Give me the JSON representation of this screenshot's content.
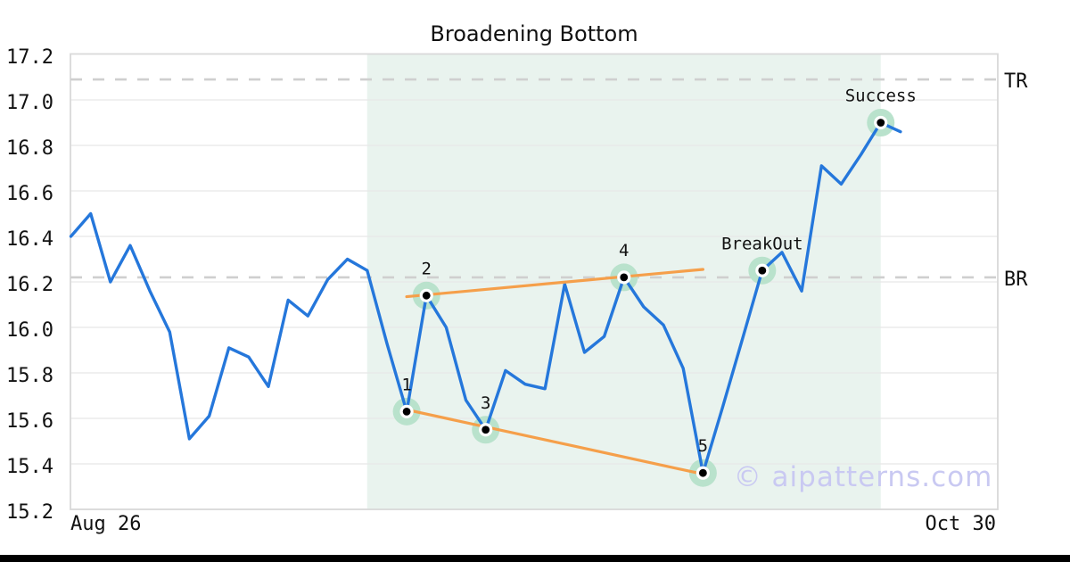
{
  "title": "Broadening Bottom",
  "watermark": "© aipatterns.com",
  "x_axis": {
    "left_label": "Aug 26",
    "right_label": "Oct 30"
  },
  "colors": {
    "price_line": "#2577db",
    "trendline": "#f59f4a",
    "marker_halo": "#b9e2cc",
    "marker_ring": "#ffffff",
    "marker_dot": "#000000",
    "pattern_shading": "#e9f3ee",
    "reference_dash": "#cfcfcf",
    "grid": "#e7e7e7",
    "spine": "#d9d9d9",
    "tick_text": "#111111",
    "label_text": "#111111",
    "watermark": "#c9c9f2",
    "footer_bar": "#000000"
  },
  "chart_data": {
    "type": "line",
    "title": "Broadening Bottom",
    "xlabel": "",
    "ylabel": "",
    "ylim": [
      15.2,
      17.2
    ],
    "y_ticks": [
      15.2,
      15.4,
      15.6,
      15.8,
      16.0,
      16.2,
      16.4,
      16.6,
      16.8,
      17.0,
      17.2
    ],
    "x_tick_labels": [
      "Aug 26",
      "Oct 30"
    ],
    "grid": "horizontal",
    "values": [
      16.4,
      16.5,
      16.2,
      16.36,
      16.16,
      15.98,
      15.51,
      15.61,
      15.91,
      15.87,
      15.74,
      16.12,
      16.05,
      16.21,
      16.3,
      16.25,
      15.93,
      15.63,
      16.14,
      16.0,
      15.68,
      15.55,
      15.81,
      15.75,
      15.73,
      16.19,
      15.89,
      15.96,
      16.22,
      16.09,
      16.01,
      15.82,
      15.36,
      15.65,
      15.95,
      16.25,
      16.33,
      16.16,
      16.71,
      16.63,
      16.76,
      16.9,
      16.86
    ],
    "special_points": [
      {
        "index": 17,
        "label": "1",
        "value": 15.63
      },
      {
        "index": 18,
        "label": "2",
        "value": 16.14
      },
      {
        "index": 21,
        "label": "3",
        "value": 15.55
      },
      {
        "index": 28,
        "label": "4",
        "value": 16.22
      },
      {
        "index": 32,
        "label": "5",
        "value": 15.36
      },
      {
        "index": 35,
        "label": "BreakOut",
        "value": 16.25
      },
      {
        "index": 41,
        "label": "Success",
        "value": 16.9
      }
    ],
    "reference_lines": [
      {
        "label": "TR",
        "value": 17.09
      },
      {
        "label": "BR",
        "value": 16.22
      }
    ],
    "trendlines": [
      {
        "name": "upper",
        "start_index": 17,
        "start_value": 16.135,
        "end_index": 32,
        "end_value": 16.255
      },
      {
        "name": "lower",
        "start_index": 17,
        "start_value": 15.638,
        "end_index": 32,
        "end_value": 15.355
      }
    ],
    "pattern_region": {
      "start_index": 15,
      "end_index": 41
    }
  }
}
